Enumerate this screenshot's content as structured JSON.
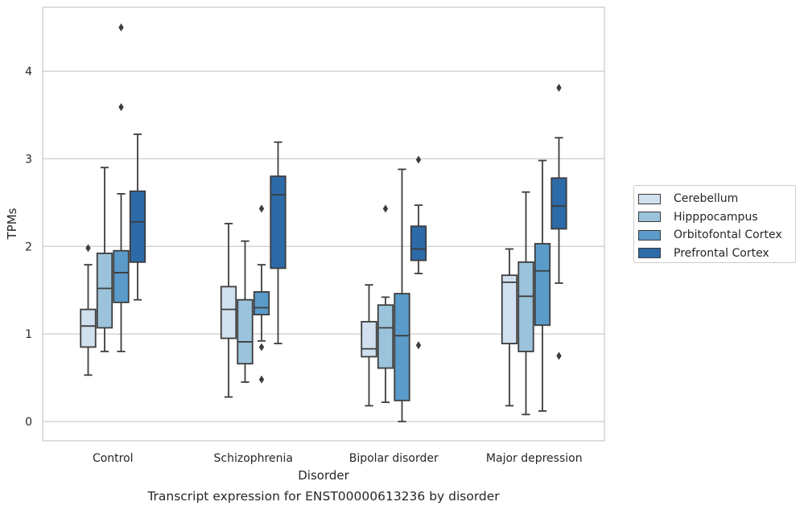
{
  "chart_data": {
    "type": "box",
    "title": "",
    "caption": "Transcript expression for ENST00000613236 by disorder",
    "xlabel": "Disorder",
    "ylabel": "TPMs",
    "ylim": [
      -0.21,
      4.74
    ],
    "yticks": [
      0,
      1,
      2,
      3,
      4
    ],
    "grid": "horizontal",
    "legend_position": "right",
    "categories": [
      "Control",
      "Schizophrenia",
      "Bipolar disorder",
      "Major depression"
    ],
    "series": [
      {
        "name": "Cerebellum",
        "color": "#d1e0ef",
        "boxes": [
          {
            "whisker_low": 0.53,
            "q1": 0.85,
            "median": 1.09,
            "q3": 1.28,
            "whisker_high": 1.79,
            "outliers": [
              1.98
            ]
          },
          {
            "whisker_low": 0.28,
            "q1": 0.95,
            "median": 1.28,
            "q3": 1.54,
            "whisker_high": 2.26,
            "outliers": []
          },
          {
            "whisker_low": 0.18,
            "q1": 0.74,
            "median": 0.83,
            "q3": 1.14,
            "whisker_high": 1.56,
            "outliers": []
          },
          {
            "whisker_low": 0.18,
            "q1": 0.89,
            "median": 1.59,
            "q3": 1.67,
            "whisker_high": 1.97,
            "outliers": []
          }
        ]
      },
      {
        "name": "Hipppocampus",
        "color": "#9bc3db",
        "boxes": [
          {
            "whisker_low": 0.8,
            "q1": 1.07,
            "median": 1.52,
            "q3": 1.92,
            "whisker_high": 2.9,
            "outliers": []
          },
          {
            "whisker_low": 0.45,
            "q1": 0.66,
            "median": 0.91,
            "q3": 1.39,
            "whisker_high": 2.06,
            "outliers": []
          },
          {
            "whisker_low": 0.22,
            "q1": 0.61,
            "median": 1.07,
            "q3": 1.33,
            "whisker_high": 1.42,
            "outliers": [
              2.43
            ]
          },
          {
            "whisker_low": 0.08,
            "q1": 0.8,
            "median": 1.43,
            "q3": 1.82,
            "whisker_high": 2.62,
            "outliers": []
          }
        ]
      },
      {
        "name": "Orbitofontal Cortex",
        "color": "#5b9bc9",
        "boxes": [
          {
            "whisker_low": 0.8,
            "q1": 1.36,
            "median": 1.7,
            "q3": 1.95,
            "whisker_high": 2.6,
            "outliers": [
              3.59,
              4.5
            ]
          },
          {
            "whisker_low": 0.92,
            "q1": 1.22,
            "median": 1.3,
            "q3": 1.48,
            "whisker_high": 1.79,
            "outliers": [
              0.85,
              0.48,
              2.43
            ]
          },
          {
            "whisker_low": 0.0,
            "q1": 0.24,
            "median": 0.98,
            "q3": 1.46,
            "whisker_high": 2.88,
            "outliers": []
          },
          {
            "whisker_low": 0.12,
            "q1": 1.1,
            "median": 1.72,
            "q3": 2.03,
            "whisker_high": 2.98,
            "outliers": []
          }
        ]
      },
      {
        "name": "Prefrontal Cortex",
        "color": "#2d6aa8",
        "boxes": [
          {
            "whisker_low": 1.39,
            "q1": 1.82,
            "median": 2.28,
            "q3": 2.63,
            "whisker_high": 3.28,
            "outliers": []
          },
          {
            "whisker_low": 0.89,
            "q1": 1.75,
            "median": 2.59,
            "q3": 2.8,
            "whisker_high": 3.19,
            "outliers": []
          },
          {
            "whisker_low": 1.69,
            "q1": 1.84,
            "median": 1.97,
            "q3": 2.23,
            "whisker_high": 2.47,
            "outliers": [
              2.99,
              0.87
            ]
          },
          {
            "whisker_low": 1.58,
            "q1": 2.2,
            "median": 2.46,
            "q3": 2.78,
            "whisker_high": 3.24,
            "outliers": [
              3.81,
              0.75
            ]
          }
        ]
      }
    ]
  }
}
